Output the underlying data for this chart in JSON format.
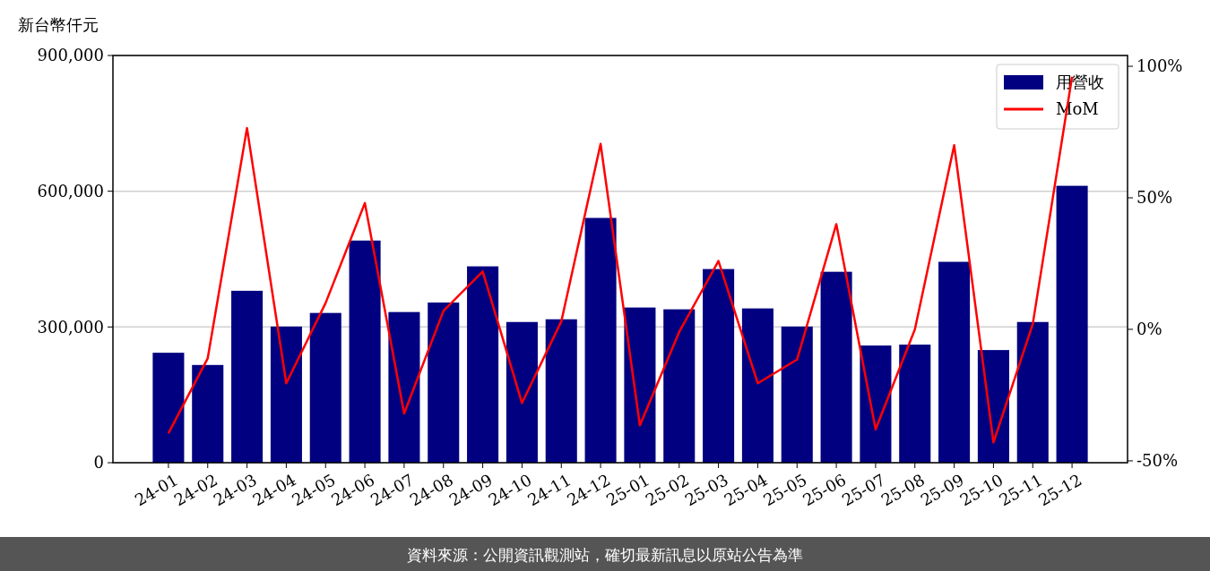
{
  "chart_data": {
    "type": "bar",
    "ylabel": "新台幣仟元",
    "categories": [
      "24-01",
      "24-02",
      "24-03",
      "24-04",
      "24-05",
      "24-06",
      "24-07",
      "24-08",
      "24-09",
      "24-10",
      "24-11",
      "24-12",
      "25-01",
      "25-02",
      "25-03",
      "25-04",
      "25-05",
      "25-06",
      "25-07",
      "25-08",
      "25-09",
      "25-10",
      "25-11",
      "25-12"
    ],
    "series": [
      {
        "name": "用營收",
        "color": "#000080",
        "values": [
          243000,
          216000,
          380000,
          301000,
          331000,
          491000,
          333000,
          354000,
          434000,
          311000,
          317000,
          541000,
          343000,
          339000,
          428000,
          341000,
          301000,
          422000,
          259000,
          261000,
          444000,
          249000,
          311000,
          612000
        ]
      },
      {
        "name": "MoM",
        "type": "line",
        "axis": "y2",
        "color": "#ff0000",
        "values": [
          -39.5,
          -11,
          76.5,
          -20.5,
          10,
          48,
          -32,
          7,
          22,
          -28,
          3,
          70.5,
          -36.5,
          -1,
          26,
          -20.5,
          -11.5,
          40,
          -38,
          0,
          70,
          -43,
          2,
          96
        ]
      }
    ],
    "ylim": [
      0,
      900000
    ],
    "yticks": [
      {
        "value": 0,
        "label": "0"
      },
      {
        "value": 300000,
        "label": "300,000"
      },
      {
        "value": 600000,
        "label": "600,000"
      },
      {
        "value": 900000,
        "label": "900,000"
      }
    ],
    "y2lim": [
      -50.7,
      104.1
    ],
    "y2ticks": [
      {
        "value": -50,
        "label": "-50%"
      },
      {
        "value": 0,
        "label": "0%"
      },
      {
        "value": 50,
        "label": "50%"
      },
      {
        "value": 100,
        "label": "100%"
      }
    ],
    "grid": "y",
    "legend": "top right",
    "marker": "none",
    "line_style": "solid",
    "annotations": [
      "資料來源：公開資訊觀測站，確切最新訊息以原站公告為準"
    ]
  }
}
